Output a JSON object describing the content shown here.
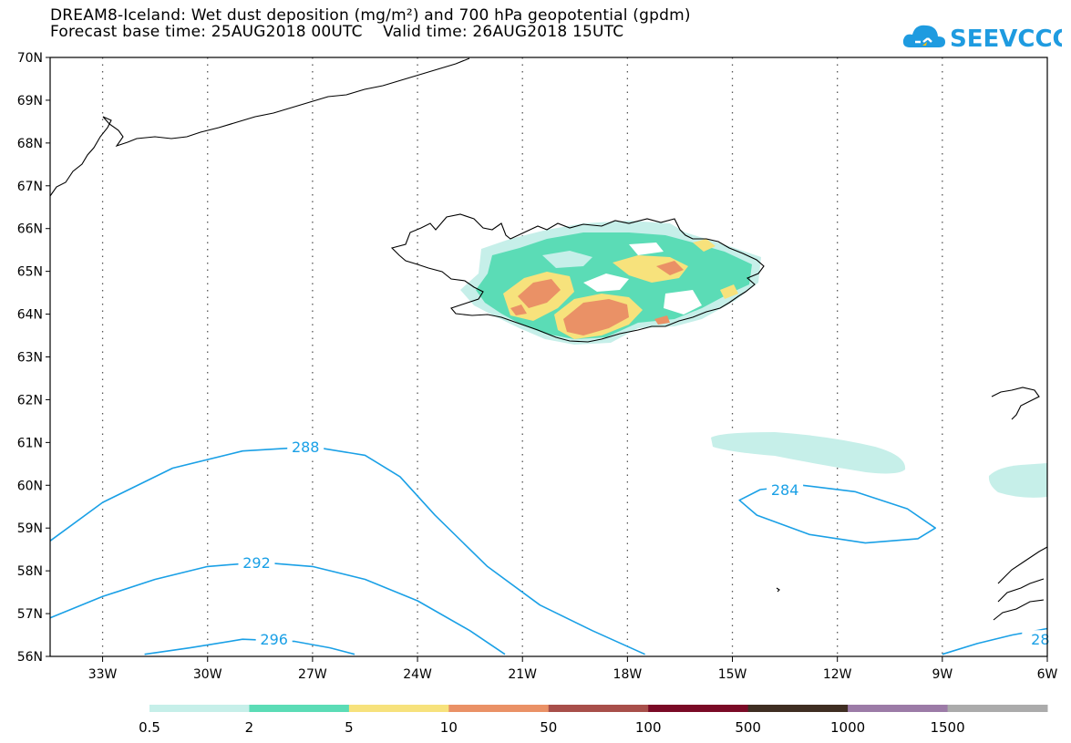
{
  "title_line1": "DREAM8-Iceland: Wet dust deposition (mg/m²) and 700 hPa geopotential (gpdm)",
  "title_line2": "Forecast base time: 25AUG2018 00UTC    Valid time: 26AUG2018 15UTC",
  "logo_text": "SEEVCCC",
  "map": {
    "lon_range": [
      -34.5,
      -6
    ],
    "lat_range": [
      56,
      70
    ],
    "lon_ticks": [
      {
        "lon": -33,
        "label": "33W"
      },
      {
        "lon": -30,
        "label": "30W"
      },
      {
        "lon": -27,
        "label": "27W"
      },
      {
        "lon": -24,
        "label": "24W"
      },
      {
        "lon": -21,
        "label": "21W"
      },
      {
        "lon": -18,
        "label": "18W"
      },
      {
        "lon": -15,
        "label": "15W"
      },
      {
        "lon": -12,
        "label": "12W"
      },
      {
        "lon": -9,
        "label": "9W"
      },
      {
        "lon": -6,
        "label": "6W"
      }
    ],
    "lat_ticks": [
      {
        "lat": 70,
        "label": "70N"
      },
      {
        "lat": 69,
        "label": "69N"
      },
      {
        "lat": 68,
        "label": "68N"
      },
      {
        "lat": 67,
        "label": "67N"
      },
      {
        "lat": 66,
        "label": "66N"
      },
      {
        "lat": 65,
        "label": "65N"
      },
      {
        "lat": 64,
        "label": "64N"
      },
      {
        "lat": 63,
        "label": "63N"
      },
      {
        "lat": 62,
        "label": "62N"
      },
      {
        "lat": 61,
        "label": "61N"
      },
      {
        "lat": 60,
        "label": "60N"
      },
      {
        "lat": 59,
        "label": "59N"
      },
      {
        "lat": 58,
        "label": "58N"
      },
      {
        "lat": 57,
        "label": "57N"
      },
      {
        "lat": 56,
        "label": "56N"
      }
    ],
    "contour_color": "#1aa0e6",
    "contours": [
      {
        "label": "288",
        "label_at": [
          -27.2,
          60.9
        ],
        "points": [
          [
            -34.5,
            58.7
          ],
          [
            -33,
            59.6
          ],
          [
            -31,
            60.4
          ],
          [
            -29,
            60.8
          ],
          [
            -27,
            60.9
          ],
          [
            -25.5,
            60.7
          ],
          [
            -24.5,
            60.2
          ],
          [
            -23.5,
            59.3
          ],
          [
            -22,
            58.1
          ],
          [
            -20.5,
            57.2
          ],
          [
            -19,
            56.6
          ],
          [
            -17.5,
            56.05
          ]
        ]
      },
      {
        "label": "292",
        "label_at": [
          -28.6,
          58.2
        ],
        "points": [
          [
            -34.5,
            56.9
          ],
          [
            -33,
            57.4
          ],
          [
            -31.5,
            57.8
          ],
          [
            -30,
            58.1
          ],
          [
            -28.5,
            58.2
          ],
          [
            -27,
            58.1
          ],
          [
            -25.5,
            57.8
          ],
          [
            -24,
            57.3
          ],
          [
            -22.5,
            56.6
          ],
          [
            -21.5,
            56.05
          ]
        ]
      },
      {
        "label": "296",
        "label_at": [
          -28.1,
          56.4
        ],
        "points": [
          [
            -31.8,
            56.05
          ],
          [
            -30.5,
            56.2
          ],
          [
            -29,
            56.4
          ],
          [
            -27.5,
            56.35
          ],
          [
            -26.5,
            56.2
          ],
          [
            -25.8,
            56.05
          ]
        ]
      },
      {
        "label": "284",
        "label_at": [
          -13.5,
          59.9
        ],
        "points": [
          [
            -14.2,
            59.9
          ],
          [
            -13,
            60
          ],
          [
            -11.5,
            59.85
          ],
          [
            -10,
            59.45
          ],
          [
            -9.2,
            59.0
          ],
          [
            -9.7,
            58.75
          ],
          [
            -11.2,
            58.65
          ],
          [
            -12.8,
            58.85
          ],
          [
            -14.3,
            59.3
          ],
          [
            -14.8,
            59.65
          ],
          [
            -14.2,
            59.9
          ]
        ]
      },
      {
        "label": "28",
        "label_at": [
          -6.2,
          56.4
        ],
        "points": [
          [
            -9,
            56.05
          ],
          [
            -8,
            56.3
          ],
          [
            -7,
            56.5
          ],
          [
            -6,
            56.65
          ]
        ]
      }
    ],
    "legend": {
      "colors": [
        "#c6efe9",
        "#5bdcb6",
        "#f7e27c",
        "#ea9166",
        "#a84f4a",
        "#7a0a26",
        "#3f2e22",
        "#9c7ba7",
        "#ababab"
      ],
      "labels": [
        "0.5",
        "2",
        "5",
        "10",
        "50",
        "100",
        "500",
        "1000",
        "1500"
      ]
    }
  }
}
